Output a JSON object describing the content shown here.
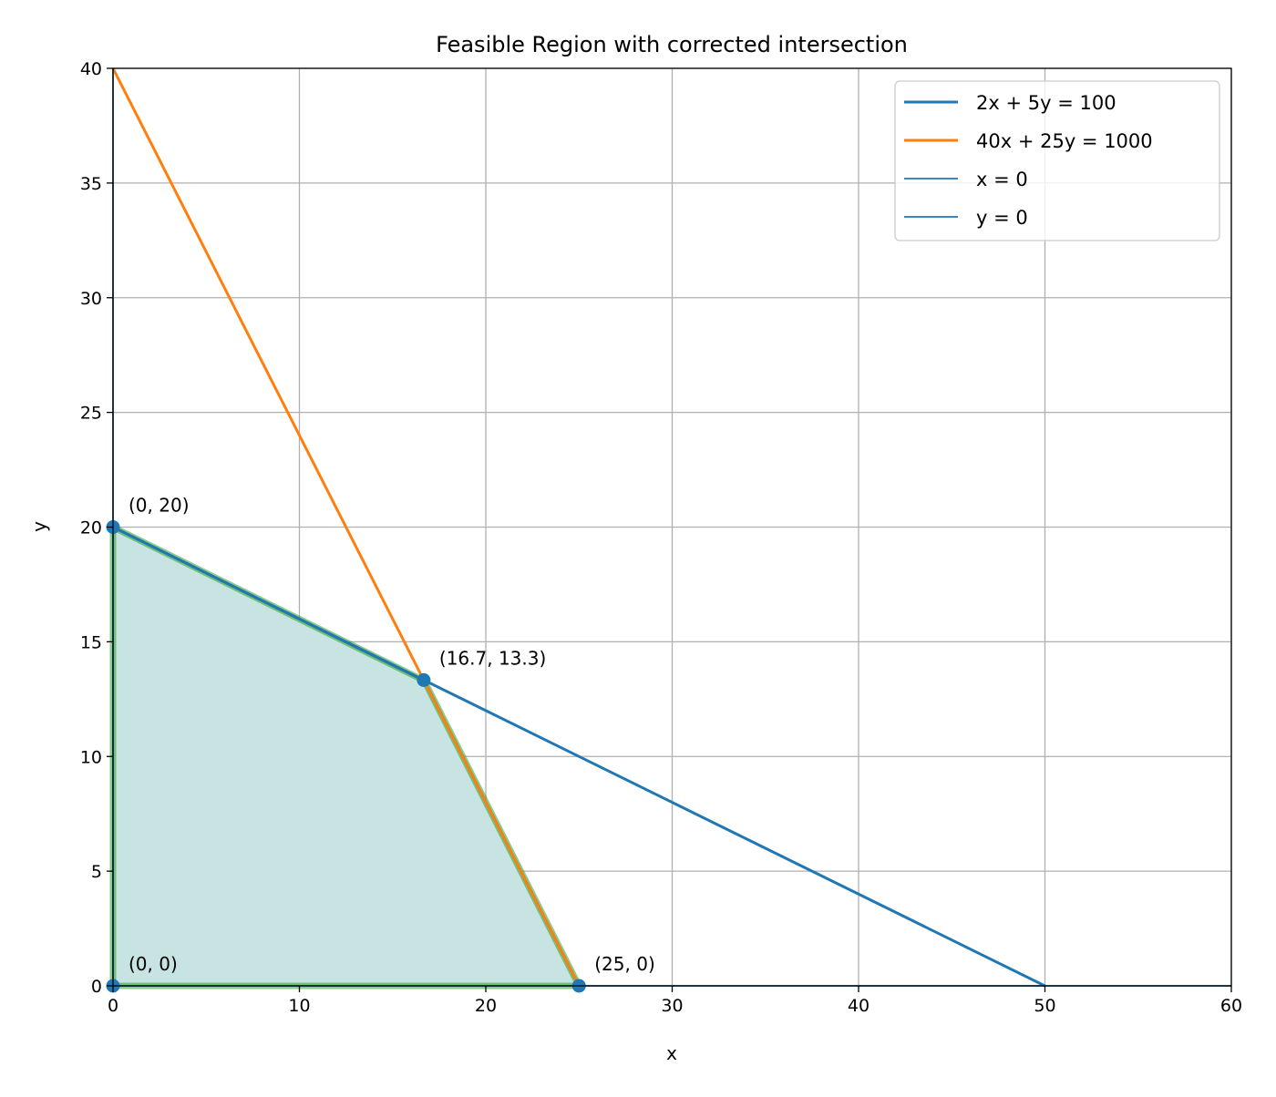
{
  "chart_data": {
    "type": "line",
    "title": "Feasible Region with corrected intersection",
    "xlabel": "x",
    "ylabel": "y",
    "xlim": [
      0,
      60
    ],
    "ylim": [
      0,
      40
    ],
    "xticks": [
      0,
      10,
      20,
      30,
      40,
      50,
      60
    ],
    "yticks": [
      0,
      5,
      10,
      15,
      20,
      25,
      30,
      35,
      40
    ],
    "grid": true,
    "legend_placement": "upper-right",
    "series": [
      {
        "name": "2x + 5y = 100",
        "color": "#1f77b4",
        "x": [
          0,
          50
        ],
        "y": [
          20,
          0
        ]
      },
      {
        "name": "40x + 25y = 1000",
        "color": "#ff7f0e",
        "x": [
          0,
          25
        ],
        "y": [
          40,
          0
        ]
      },
      {
        "name": "x = 0",
        "color": "#1f77b4",
        "x": [
          0,
          0
        ],
        "y": [
          0,
          40
        ]
      },
      {
        "name": "y = 0",
        "color": "#1f77b4",
        "x": [
          0,
          60
        ],
        "y": [
          0,
          0
        ]
      }
    ],
    "feasible_region": {
      "fill_color": "#c8e4e2",
      "edge_color": "#2ca02c",
      "vertices": [
        [
          0,
          0
        ],
        [
          0,
          20
        ],
        [
          16.7,
          13.3
        ],
        [
          25,
          0
        ]
      ]
    },
    "points": [
      {
        "x": 0,
        "y": 0,
        "label": "(0, 0)"
      },
      {
        "x": 0,
        "y": 20,
        "label": "(0, 20)"
      },
      {
        "x": 16.67,
        "y": 13.33,
        "label": "(16.7, 13.3)"
      },
      {
        "x": 25,
        "y": 0,
        "label": "(25, 0)"
      }
    ],
    "point_color": "#1f77b4"
  }
}
